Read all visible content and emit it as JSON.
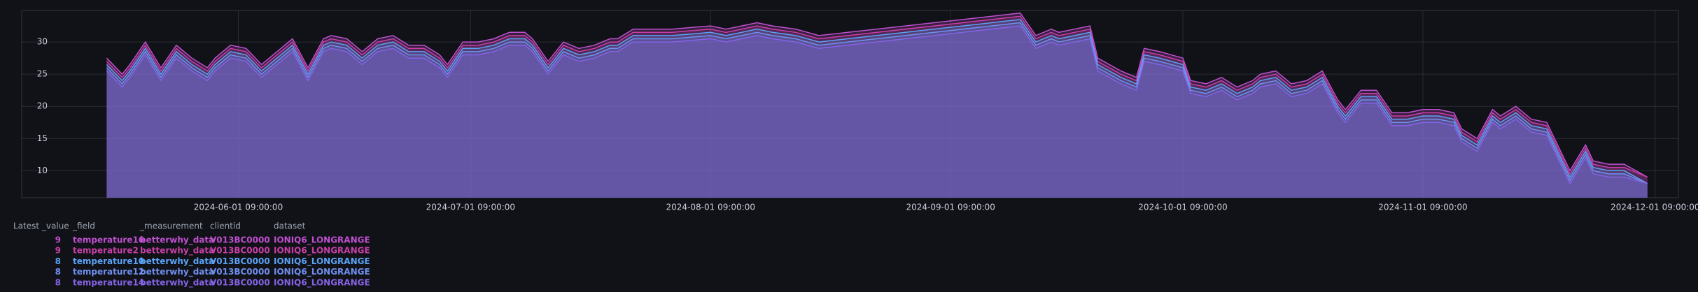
{
  "chart_data": {
    "type": "line",
    "x": [
      "2024-05-15 09:00:00",
      "2024-05-17 09:00:00",
      "2024-05-18 09:00:00",
      "2024-05-20 09:00:00",
      "2024-05-22 09:00:00",
      "2024-05-24 09:00:00",
      "2024-05-26 09:00:00",
      "2024-05-28 09:00:00",
      "2024-05-29 09:00:00",
      "2024-05-31 09:00:00",
      "2024-06-02 09:00:00",
      "2024-06-04 09:00:00",
      "2024-06-06 09:00:00",
      "2024-06-08 09:00:00",
      "2024-06-10 09:00:00",
      "2024-06-12 09:00:00",
      "2024-06-13 09:00:00",
      "2024-06-15 09:00:00",
      "2024-06-17 09:00:00",
      "2024-06-19 09:00:00",
      "2024-06-21 09:00:00",
      "2024-06-23 09:00:00",
      "2024-06-25 09:00:00",
      "2024-06-27 09:00:00",
      "2024-06-28 09:00:00",
      "2024-06-30 09:00:00",
      "2024-07-02 09:00:00",
      "2024-07-04 09:00:00",
      "2024-07-06 09:00:00",
      "2024-07-08 09:00:00",
      "2024-07-09 09:00:00",
      "2024-07-11 09:00:00",
      "2024-07-13 09:00:00",
      "2024-07-15 09:00:00",
      "2024-07-17 09:00:00",
      "2024-07-19 09:00:00",
      "2024-07-20 09:00:00",
      "2024-07-22 09:00:00",
      "2024-07-24 09:00:00",
      "2024-07-27 09:00:00",
      "2024-07-30 09:00:00",
      "2024-08-01 09:00:00",
      "2024-08-03 09:00:00",
      "2024-08-05 09:00:00",
      "2024-08-07 09:00:00",
      "2024-08-09 09:00:00",
      "2024-08-12 09:00:00",
      "2024-08-15 09:00:00",
      "2024-09-10 09:00:00",
      "2024-09-12 09:00:00",
      "2024-09-14 09:00:00",
      "2024-09-15 09:00:00",
      "2024-09-17 09:00:00",
      "2024-09-19 09:00:00",
      "2024-09-20 09:00:00",
      "2024-09-23 09:00:00",
      "2024-09-25 09:00:00",
      "2024-09-26 09:00:00",
      "2024-09-28 09:00:00",
      "2024-10-01 09:00:00",
      "2024-10-02 09:00:00",
      "2024-10-04 09:00:00",
      "2024-10-06 09:00:00",
      "2024-10-08 09:00:00",
      "2024-10-10 09:00:00",
      "2024-10-11 09:00:00",
      "2024-10-13 09:00:00",
      "2024-10-15 09:00:00",
      "2024-10-17 09:00:00",
      "2024-10-19 09:00:00",
      "2024-10-21 09:00:00",
      "2024-10-22 09:00:00",
      "2024-10-24 09:00:00",
      "2024-10-26 09:00:00",
      "2024-10-28 09:00:00",
      "2024-10-30 09:00:00",
      "2024-11-01 09:00:00",
      "2024-11-03 09:00:00",
      "2024-11-05 09:00:00",
      "2024-11-06 09:00:00",
      "2024-11-08 09:00:00",
      "2024-11-10 09:00:00",
      "2024-11-11 09:00:00",
      "2024-11-13 09:00:00",
      "2024-11-15 09:00:00",
      "2024-11-17 09:00:00",
      "2024-11-20 09:00:00",
      "2024-11-22 09:00:00",
      "2024-11-23 09:00:00",
      "2024-11-25 09:00:00",
      "2024-11-27 09:00:00",
      "2024-11-30 09:00:00"
    ],
    "xlim": [
      "2024-05-08 09:00:00",
      "2024-12-04 09:00:00"
    ],
    "xticks": [
      "2024-06-01 09:00:00",
      "2024-07-01 09:00:00",
      "2024-08-01 09:00:00",
      "2024-09-01 09:00:00",
      "2024-10-01 09:00:00",
      "2024-11-01 09:00:00",
      "2024-12-01 09:00:00"
    ],
    "ylim": [
      5.8,
      34.9
    ],
    "yticks": [
      10,
      15,
      20,
      25,
      30
    ],
    "grid": true,
    "legend_columns": [
      "Latest _value",
      "_field",
      "_measurement",
      "clientid",
      "dataset"
    ],
    "series": [
      {
        "name": "temperature16",
        "latest": 9,
        "measurement": "betterwhy_data",
        "clientid": "V013BC0000",
        "dataset": "IONIQ6_LONGRANGE",
        "color": "#c04fd0",
        "values": [
          27.5,
          25,
          26.5,
          30,
          26,
          29.5,
          27.5,
          26,
          27.5,
          29.5,
          29,
          26.5,
          28.5,
          30.5,
          26,
          30.5,
          31,
          30.5,
          28.5,
          30.5,
          31,
          29.5,
          29.5,
          28,
          26.5,
          30,
          30,
          30.5,
          31.5,
          31.5,
          30.5,
          27,
          30,
          29,
          29.5,
          30.5,
          30.5,
          32,
          32,
          32,
          32.3,
          32.5,
          32,
          32.5,
          33,
          32.5,
          32,
          31,
          34.5,
          31,
          32,
          31.5,
          32,
          32.5,
          27.5,
          25.5,
          24.5,
          29,
          28.5,
          27.5,
          24,
          23.5,
          24.5,
          23,
          24,
          25,
          25.5,
          23.5,
          24,
          25.5,
          21,
          19.5,
          22.5,
          22.5,
          19,
          19,
          19.5,
          19.5,
          19,
          16.5,
          15,
          19.5,
          18.5,
          20,
          18,
          17.5,
          10,
          14,
          11.5,
          11,
          11,
          9
        ]
      },
      {
        "name": "temperature2",
        "latest": 9,
        "measurement": "betterwhy_data",
        "clientid": "V013BC0000",
        "dataset": "IONIQ6_LONGRANGE",
        "color": "#c73fa8",
        "values": [
          27,
          24.5,
          26,
          29.5,
          25.5,
          29,
          27,
          25.5,
          27,
          29,
          28.5,
          26,
          28,
          30,
          25.5,
          30,
          30.5,
          30,
          28,
          30,
          30.5,
          29,
          29,
          27.5,
          26,
          29.5,
          29.5,
          30,
          31,
          31,
          30,
          26.5,
          29.5,
          28.5,
          29,
          30,
          30,
          31.5,
          31.5,
          31.5,
          31.8,
          32,
          31.5,
          32,
          32.5,
          32,
          31.5,
          30.5,
          34,
          30.5,
          31.5,
          31,
          31.5,
          32,
          27,
          25,
          24,
          28.5,
          28,
          27,
          23.5,
          23,
          24,
          22.5,
          23.5,
          24.5,
          25,
          23,
          23.5,
          25,
          20.5,
          19,
          22,
          22,
          18.5,
          18.5,
          19,
          19,
          18.5,
          16,
          14.5,
          19,
          18,
          19.5,
          17.5,
          17,
          9.5,
          13.5,
          11,
          10.5,
          10.5,
          9
        ]
      },
      {
        "name": "temperature10",
        "latest": 8,
        "measurement": "betterwhy_data",
        "clientid": "V013BC0000",
        "dataset": "IONIQ6_LONGRANGE",
        "color": "#5aa2f5",
        "values": [
          26.5,
          24,
          25.5,
          29,
          25,
          28.5,
          26.5,
          25,
          26.5,
          28.5,
          28,
          25.5,
          27.5,
          29.5,
          25,
          29.5,
          30,
          29.5,
          27.5,
          29.5,
          30,
          28.5,
          28.5,
          27,
          25.5,
          29,
          29,
          29.5,
          30.5,
          30.5,
          29.5,
          26,
          29,
          28,
          28.5,
          29.5,
          29.5,
          31,
          31,
          31,
          31.3,
          31.5,
          31,
          31.5,
          32,
          31.5,
          31,
          30,
          33.5,
          30,
          31,
          30.5,
          31,
          31.5,
          26.5,
          24.5,
          23.5,
          28,
          27.5,
          26.5,
          23,
          22.5,
          23.5,
          22,
          23,
          24,
          24.5,
          22.5,
          23,
          24.5,
          20,
          18.5,
          21.5,
          21.5,
          18,
          18,
          18.5,
          18.5,
          18,
          15.5,
          14,
          18.5,
          17.5,
          19,
          17,
          16.5,
          9,
          13,
          10.5,
          10,
          10,
          8
        ]
      },
      {
        "name": "temperature12",
        "latest": 8,
        "measurement": "betterwhy_data",
        "clientid": "V013BC0000",
        "dataset": "IONIQ6_LONGRANGE",
        "color": "#6f8ff0",
        "values": [
          26,
          23.5,
          25,
          28.5,
          24.5,
          28,
          26,
          24.5,
          26,
          28,
          27.5,
          25,
          27,
          29,
          24.5,
          29,
          29.5,
          29,
          27,
          29,
          29.5,
          28,
          28,
          26.5,
          25,
          28.5,
          28.5,
          29,
          30,
          30,
          29,
          25.5,
          28.5,
          27.5,
          28,
          29,
          29,
          30.5,
          30.5,
          30.5,
          30.8,
          31,
          30.5,
          31,
          31.5,
          31,
          30.5,
          29.5,
          33,
          29.5,
          30.5,
          30,
          30.5,
          31,
          26,
          24,
          23,
          27.5,
          27,
          26,
          22.5,
          22,
          23,
          21.5,
          22.5,
          23.5,
          24,
          22,
          22.5,
          24,
          19.5,
          18,
          21,
          21,
          17.5,
          17.5,
          18,
          18,
          17.5,
          15,
          13.5,
          18,
          17,
          18.5,
          16.5,
          16,
          8.5,
          12.5,
          10,
          9.5,
          9.5,
          8
        ]
      },
      {
        "name": "temperature14",
        "latest": 8,
        "measurement": "betterwhy_data",
        "clientid": "V013BC0000",
        "dataset": "IONIQ6_LONGRANGE",
        "color": "#8463e6",
        "values": [
          25.5,
          23,
          24.5,
          28,
          24,
          27.5,
          25.5,
          24,
          25.5,
          27.5,
          27,
          24.5,
          26.5,
          28.5,
          24,
          28.5,
          29,
          28.5,
          26.5,
          28.5,
          29,
          27.5,
          27.5,
          26,
          24.5,
          28,
          28,
          28.5,
          29.5,
          29.5,
          28.5,
          25,
          28,
          27,
          27.5,
          28.5,
          28.5,
          30,
          30,
          30,
          30.3,
          30.5,
          30,
          30.5,
          31,
          30.5,
          30,
          29,
          32.5,
          29,
          30,
          29.5,
          30,
          30.5,
          25.5,
          23.5,
          22.5,
          27,
          26.5,
          25.5,
          22,
          21.5,
          22.5,
          21,
          22,
          23,
          23.5,
          21.5,
          22,
          23.5,
          19,
          17.5,
          20.5,
          20.5,
          17,
          17,
          17.5,
          17.5,
          17,
          14.5,
          13,
          17.5,
          16.5,
          18,
          16,
          15.5,
          8,
          12,
          9.5,
          9,
          9,
          8
        ]
      }
    ]
  }
}
